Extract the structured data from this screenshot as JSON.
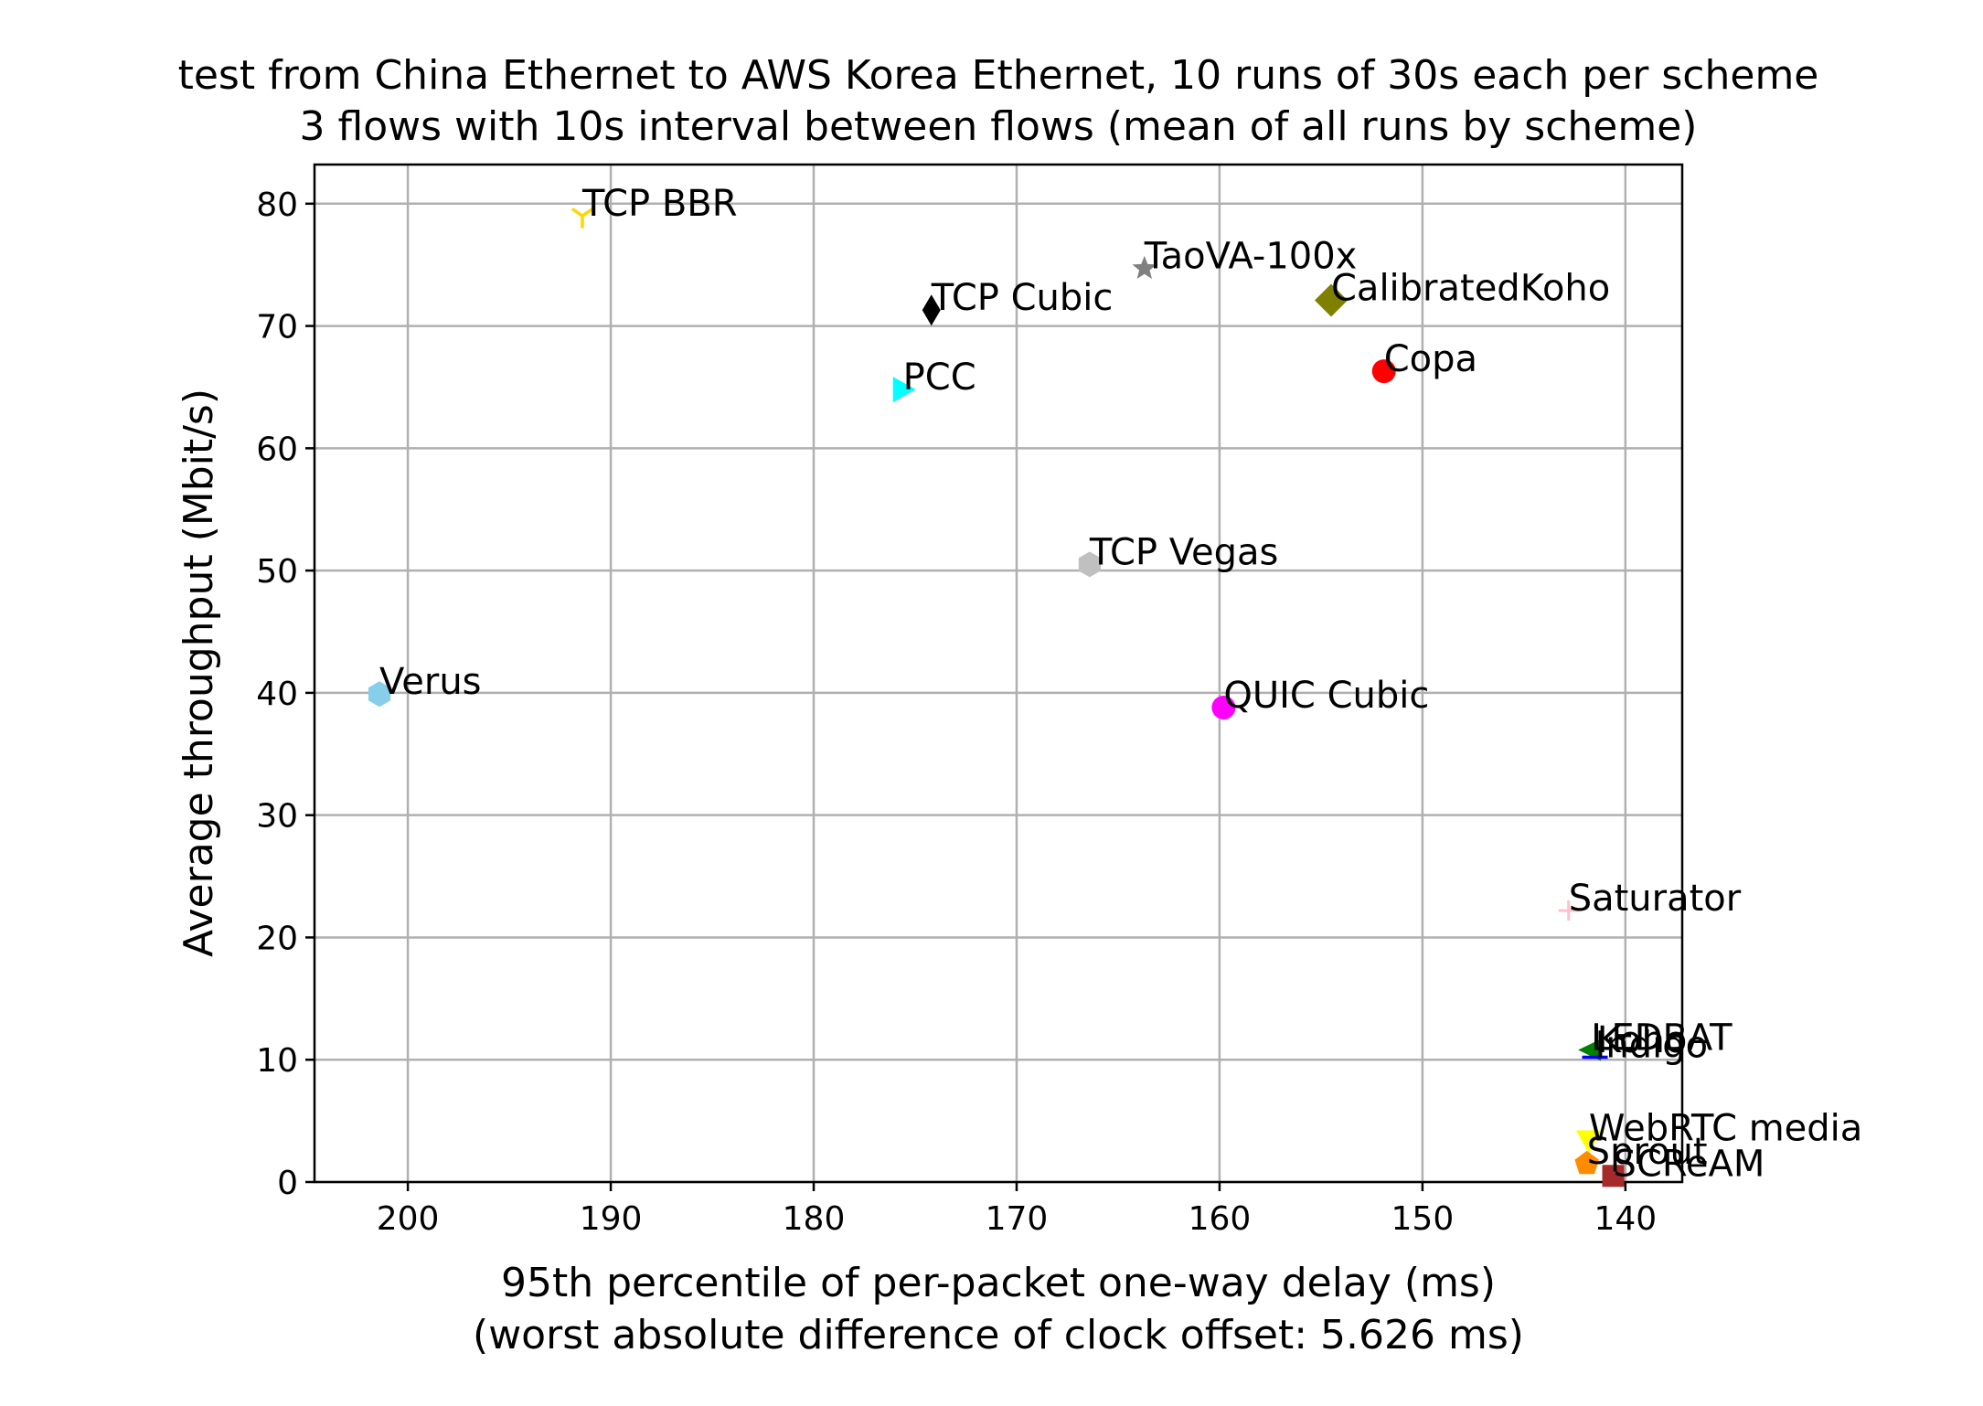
{
  "chart_data": {
    "type": "scatter",
    "title_lines": [
      "test from China Ethernet to AWS Korea Ethernet, 10 runs of 30s each per scheme",
      "3 flows with 10s interval between flows (mean of all runs by scheme)"
    ],
    "xlabel_lines": [
      "95th percentile of per-packet one-way delay (ms)",
      "(worst absolute difference of clock offset: 5.626 ms)"
    ],
    "ylabel": "Average throughput (Mbit/s)",
    "xlim": [
      204.6,
      137.2
    ],
    "ylim": [
      0,
      83.2
    ],
    "x_inverted": true,
    "grid": true,
    "xticks": [
      200,
      190,
      180,
      170,
      160,
      150,
      140
    ],
    "yticks": [
      0,
      10,
      20,
      30,
      40,
      50,
      60,
      70,
      80
    ],
    "points": [
      {
        "name": "TCP BBR",
        "x": 191.4,
        "y": 79.0,
        "marker": "tri_down",
        "color": "#ffd700"
      },
      {
        "name": "TaoVA-100x",
        "x": 163.7,
        "y": 74.7,
        "marker": "star",
        "color": "#808080"
      },
      {
        "name": "TCP Cubic",
        "x": 174.2,
        "y": 71.3,
        "marker": "thin_diamond",
        "color": "#000000"
      },
      {
        "name": "CalibratedKoho",
        "x": 154.5,
        "y": 72.1,
        "marker": "diamond",
        "color": "#808000"
      },
      {
        "name": "Copa",
        "x": 151.9,
        "y": 66.3,
        "marker": "circle",
        "color": "#ff0000"
      },
      {
        "name": "PCC",
        "x": 175.6,
        "y": 64.8,
        "marker": "triangle_right",
        "color": "#00ffff"
      },
      {
        "name": "TCP Vegas",
        "x": 166.4,
        "y": 50.5,
        "marker": "hexagon",
        "color": "#c0c0c0"
      },
      {
        "name": "Verus",
        "x": 201.4,
        "y": 39.9,
        "marker": "hexagon",
        "color": "#87ceeb"
      },
      {
        "name": "QUIC Cubic",
        "x": 159.8,
        "y": 38.8,
        "marker": "octagon",
        "color": "#ff00ff"
      },
      {
        "name": "Saturator",
        "x": 142.8,
        "y": 22.2,
        "marker": "plus",
        "color": "#ffc0cb"
      },
      {
        "name": "LEDBAT",
        "x": 141.7,
        "y": 10.8,
        "marker": "triangle_left",
        "color": "#008000"
      },
      {
        "name": "Indigo",
        "x": 141.5,
        "y": 10.2,
        "marker": "hline",
        "color": "#0000ff"
      },
      {
        "name": "Koho",
        "x": 141.4,
        "y": 10.6,
        "marker": "none",
        "color": "#000000"
      },
      {
        "name": "WebRTC media",
        "x": 141.8,
        "y": 3.4,
        "marker": "triangle_down",
        "color": "#ffff00"
      },
      {
        "name": "Sprout",
        "x": 141.9,
        "y": 1.5,
        "marker": "pentagon",
        "color": "#ff8c00"
      },
      {
        "name": "SCReAM",
        "x": 140.6,
        "y": 0.5,
        "marker": "square",
        "color": "#a52a2a"
      }
    ]
  }
}
